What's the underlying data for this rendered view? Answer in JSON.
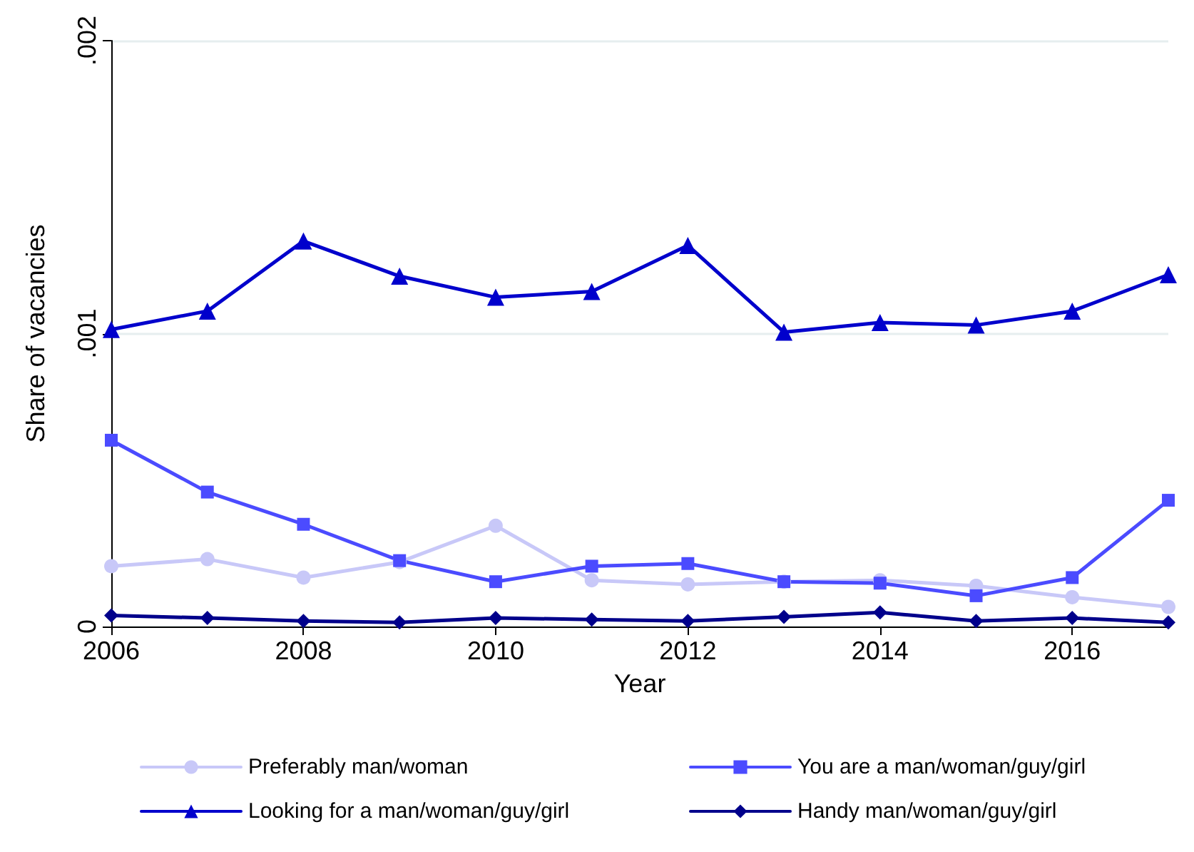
{
  "chart_data": {
    "type": "line",
    "xlabel": "Year",
    "ylabel": "Share of vacancies",
    "x": [
      2006,
      2007,
      2008,
      2009,
      2010,
      2011,
      2012,
      2013,
      2014,
      2015,
      2016,
      2017
    ],
    "xlim": [
      2006,
      2017
    ],
    "xticks": [
      2006,
      2008,
      2010,
      2012,
      2014,
      2016
    ],
    "ylim": [
      0,
      0.002
    ],
    "yticks": [
      {
        "value": 0,
        "label": "0"
      },
      {
        "value": 0.001,
        "label": ".001"
      },
      {
        "value": 0.002,
        "label": ".002"
      }
    ],
    "grid": "y",
    "legend": "bottom",
    "series": [
      {
        "name": "Preferably man/woman",
        "color": "#c8c8f8",
        "marker": "circle",
        "values": [
          0.000206,
          0.00023,
          0.000167,
          0.00022,
          0.000344,
          0.000158,
          0.000144,
          0.000153,
          0.000158,
          0.000139,
          0.0001,
          6.7e-05
        ]
      },
      {
        "name": "You are a man/woman/guy/girl",
        "color": "#4b4bff",
        "marker": "square",
        "values": [
          0.000636,
          0.000459,
          0.000349,
          0.000225,
          0.000153,
          0.000206,
          0.000215,
          0.000153,
          0.000148,
          0.000105,
          0.000167,
          0.000431
        ]
      },
      {
        "name": "Looking for a man/woman/guy/girl",
        "color": "#0000cc",
        "marker": "triangle",
        "values": [
          0.001014,
          0.001077,
          0.001316,
          0.001196,
          0.001124,
          0.001144,
          0.001301,
          0.001005,
          0.001038,
          0.001029,
          0.001077,
          0.001201
        ]
      },
      {
        "name": "Handy man/woman/guy/girl",
        "color": "#00008b",
        "marker": "diamond",
        "values": [
          3.8e-05,
          2.9e-05,
          1.9e-05,
          1.4e-05,
          2.9e-05,
          2.4e-05,
          1.9e-05,
          3.3e-05,
          4.8e-05,
          1.9e-05,
          2.9e-05,
          1.4e-05
        ]
      }
    ]
  }
}
